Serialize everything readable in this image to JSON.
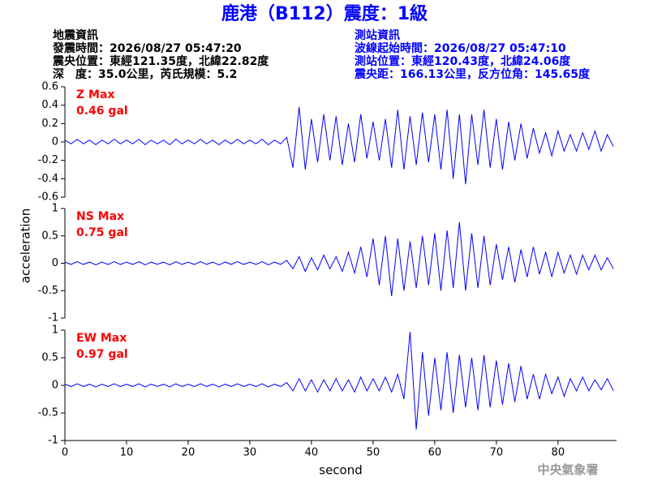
{
  "title": "鹿港（B112）震度：1級",
  "left_info": [
    "地震資訊",
    "發震時間：2026/08/27 05:47:20",
    "震央位置：東經121.35度，北緯22.82度",
    "深　度：35.0公里，芮氏規模：5.2"
  ],
  "right_info": [
    "測站資訊",
    "波線起始時間：2026/08/27 05:47:10",
    "測站位置：東經120.43度，北緯24.06度",
    "震央距：166.13公里，反方位角：145.65度"
  ],
  "y_label": "acceleration",
  "footer": "中央氣象署",
  "chart_data": [
    {
      "type": "line",
      "annotations": [
        "Z Max",
        "0.46 gal"
      ],
      "x": [
        0,
        1,
        2,
        3,
        4,
        5,
        6,
        7,
        8,
        9,
        10,
        11,
        12,
        13,
        14,
        15,
        16,
        17,
        18,
        19,
        20,
        21,
        22,
        23,
        24,
        25,
        26,
        27,
        28,
        29,
        30,
        31,
        32,
        33,
        34,
        35,
        36,
        37,
        38,
        39,
        40,
        41,
        42,
        43,
        44,
        45,
        46,
        47,
        48,
        49,
        50,
        51,
        52,
        53,
        54,
        55,
        56,
        57,
        58,
        59,
        60,
        61,
        62,
        63,
        64,
        65,
        66,
        67,
        68,
        69,
        70,
        71,
        72,
        73,
        74,
        75,
        76,
        77,
        78,
        79,
        80,
        81,
        82,
        83,
        84,
        85,
        86,
        87,
        88,
        89
      ],
      "series": [
        {
          "color": "#0000ff",
          "values": [
            0.02,
            -0.02,
            0.03,
            -0.02,
            0.02,
            -0.03,
            0.02,
            -0.02,
            0.03,
            -0.02,
            0.02,
            -0.02,
            0.03,
            -0.03,
            0.02,
            -0.02,
            0.02,
            -0.03,
            0.03,
            -0.02,
            0.02,
            -0.02,
            0.03,
            -0.02,
            0.02,
            -0.03,
            0.02,
            -0.02,
            0.03,
            -0.02,
            0.02,
            -0.02,
            0.03,
            -0.03,
            0.02,
            -0.02,
            0.05,
            -0.28,
            0.38,
            -0.3,
            0.25,
            -0.22,
            0.3,
            -0.2,
            0.28,
            -0.25,
            0.2,
            -0.22,
            0.3,
            -0.18,
            0.22,
            -0.2,
            0.25,
            -0.28,
            0.35,
            -0.3,
            0.28,
            -0.25,
            0.32,
            -0.22,
            0.3,
            -0.3,
            0.35,
            -0.4,
            0.3,
            -0.46,
            0.3,
            -0.25,
            0.35,
            -0.28,
            0.25,
            -0.3,
            0.22,
            -0.2,
            0.2,
            -0.18,
            0.15,
            -0.12,
            0.1,
            -0.15,
            0.12,
            -0.1,
            0.08,
            -0.1,
            0.1,
            -0.08,
            0.12,
            -0.1,
            0.08,
            -0.05
          ]
        }
      ],
      "xlim": [
        0,
        89.5
      ],
      "ylim": [
        -0.6,
        0.6
      ],
      "yticks": [
        -0.6,
        -0.4,
        -0.2,
        0,
        0.2,
        0.4,
        0.6
      ]
    },
    {
      "type": "line",
      "annotations": [
        "NS Max",
        "0.75 gal"
      ],
      "x": [
        0,
        1,
        2,
        3,
        4,
        5,
        6,
        7,
        8,
        9,
        10,
        11,
        12,
        13,
        14,
        15,
        16,
        17,
        18,
        19,
        20,
        21,
        22,
        23,
        24,
        25,
        26,
        27,
        28,
        29,
        30,
        31,
        32,
        33,
        34,
        35,
        36,
        37,
        38,
        39,
        40,
        41,
        42,
        43,
        44,
        45,
        46,
        47,
        48,
        49,
        50,
        51,
        52,
        53,
        54,
        55,
        56,
        57,
        58,
        59,
        60,
        61,
        62,
        63,
        64,
        65,
        66,
        67,
        68,
        69,
        70,
        71,
        72,
        73,
        74,
        75,
        76,
        77,
        78,
        79,
        80,
        81,
        82,
        83,
        84,
        85,
        86,
        87,
        88,
        89
      ],
      "series": [
        {
          "color": "#0000ff",
          "values": [
            0.02,
            -0.02,
            0.03,
            -0.02,
            0.02,
            -0.03,
            0.02,
            -0.02,
            0.03,
            -0.02,
            0.02,
            -0.02,
            0.03,
            -0.03,
            0.02,
            -0.02,
            0.02,
            -0.03,
            0.03,
            -0.02,
            0.02,
            -0.02,
            0.03,
            -0.02,
            0.02,
            -0.03,
            0.02,
            -0.02,
            0.03,
            -0.02,
            0.02,
            -0.02,
            0.03,
            -0.03,
            0.02,
            -0.02,
            0.05,
            -0.1,
            0.12,
            -0.15,
            0.1,
            -0.12,
            0.15,
            -0.1,
            0.12,
            -0.15,
            0.2,
            -0.18,
            0.3,
            -0.25,
            0.45,
            -0.4,
            0.5,
            -0.6,
            0.45,
            -0.5,
            0.4,
            -0.45,
            0.5,
            -0.4,
            0.55,
            -0.5,
            0.6,
            -0.45,
            0.75,
            -0.5,
            0.55,
            -0.45,
            0.5,
            -0.4,
            0.35,
            -0.3,
            0.3,
            -0.35,
            0.25,
            -0.25,
            0.3,
            -0.2,
            0.2,
            -0.25,
            0.2,
            -0.18,
            0.15,
            -0.2,
            0.15,
            -0.12,
            0.15,
            -0.12,
            0.1,
            -0.1
          ]
        }
      ],
      "xlim": [
        0,
        89.5
      ],
      "ylim": [
        -1,
        1
      ],
      "yticks": [
        -1,
        -0.5,
        0,
        0.5,
        1
      ]
    },
    {
      "type": "line",
      "annotations": [
        "EW Max",
        "0.97 gal"
      ],
      "xlabel": "second",
      "x": [
        0,
        1,
        2,
        3,
        4,
        5,
        6,
        7,
        8,
        9,
        10,
        11,
        12,
        13,
        14,
        15,
        16,
        17,
        18,
        19,
        20,
        21,
        22,
        23,
        24,
        25,
        26,
        27,
        28,
        29,
        30,
        31,
        32,
        33,
        34,
        35,
        36,
        37,
        38,
        39,
        40,
        41,
        42,
        43,
        44,
        45,
        46,
        47,
        48,
        49,
        50,
        51,
        52,
        53,
        54,
        55,
        56,
        57,
        58,
        59,
        60,
        61,
        62,
        63,
        64,
        65,
        66,
        67,
        68,
        69,
        70,
        71,
        72,
        73,
        74,
        75,
        76,
        77,
        78,
        79,
        80,
        81,
        82,
        83,
        84,
        85,
        86,
        87,
        88,
        89
      ],
      "series": [
        {
          "color": "#0000ff",
          "values": [
            0.02,
            -0.02,
            0.03,
            -0.02,
            0.02,
            -0.03,
            0.02,
            -0.02,
            0.03,
            -0.02,
            0.02,
            -0.02,
            0.03,
            -0.03,
            0.02,
            -0.02,
            0.02,
            -0.03,
            0.03,
            -0.02,
            0.02,
            -0.02,
            0.03,
            -0.02,
            0.02,
            -0.03,
            0.02,
            -0.02,
            0.03,
            -0.02,
            0.02,
            -0.02,
            0.03,
            -0.03,
            0.02,
            -0.02,
            0.05,
            -0.1,
            0.12,
            -0.1,
            0.1,
            -0.12,
            0.1,
            -0.1,
            0.12,
            -0.1,
            0.1,
            -0.12,
            0.15,
            -0.1,
            0.12,
            -0.1,
            0.15,
            -0.12,
            0.2,
            -0.25,
            0.97,
            -0.8,
            0.6,
            -0.55,
            0.5,
            -0.45,
            0.6,
            -0.5,
            0.55,
            -0.4,
            0.5,
            -0.45,
            0.55,
            -0.4,
            0.45,
            -0.35,
            0.4,
            -0.3,
            0.35,
            -0.25,
            0.2,
            -0.25,
            0.2,
            -0.15,
            0.15,
            -0.2,
            0.12,
            -0.1,
            0.15,
            -0.1,
            0.1,
            -0.08,
            0.12,
            -0.1
          ]
        }
      ],
      "xlim": [
        0,
        89.5
      ],
      "ylim": [
        -1,
        1
      ],
      "yticks": [
        -1,
        -0.5,
        0,
        0.5,
        1
      ],
      "xticks": [
        0,
        10,
        20,
        30,
        40,
        50,
        60,
        70,
        80
      ]
    }
  ]
}
